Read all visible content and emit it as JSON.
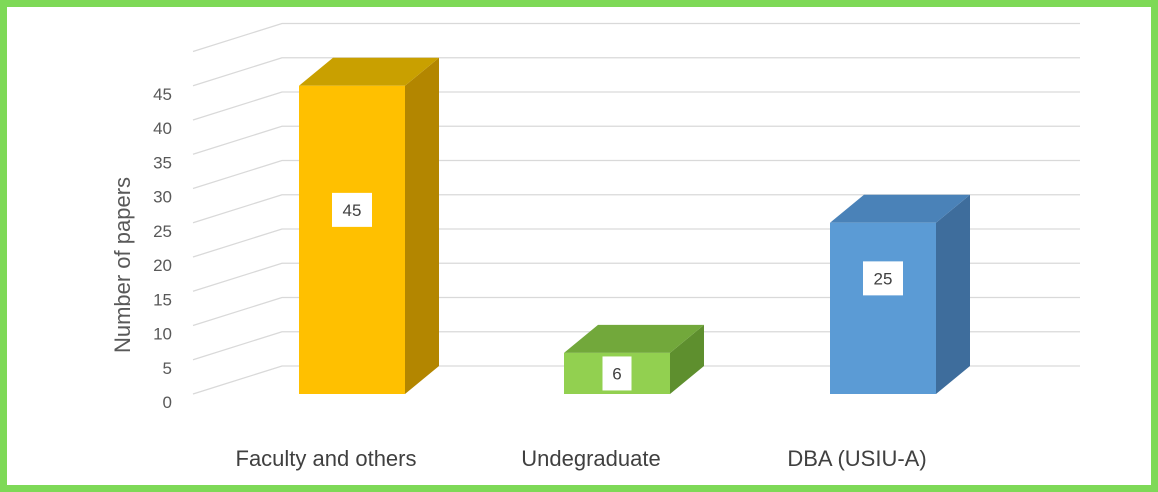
{
  "chart_data": {
    "type": "bar",
    "categories": [
      "Faculty and others",
      "Undegraduate",
      "DBA (USIU-A)"
    ],
    "values": [
      45,
      6,
      25
    ],
    "ylabel": "Number of papers",
    "xlabel": "",
    "ylim": [
      0,
      50
    ],
    "y_ticks": [
      "0",
      "5",
      "10",
      "15",
      "20",
      "25",
      "30",
      "35",
      "40",
      "45"
    ],
    "data_labels": [
      "45",
      "6",
      "25"
    ],
    "grid": true,
    "style": "3d-column",
    "colors": {
      "front": [
        "#ffc000",
        "#92d050",
        "#5b9bd5"
      ],
      "top": [
        "#c9a000",
        "#72a83b",
        "#4a82b8"
      ],
      "side": [
        "#b38600",
        "#5e8f2e",
        "#3e6d9c"
      ],
      "frame": "#7ed957",
      "grid": "#d9d9d9"
    }
  }
}
